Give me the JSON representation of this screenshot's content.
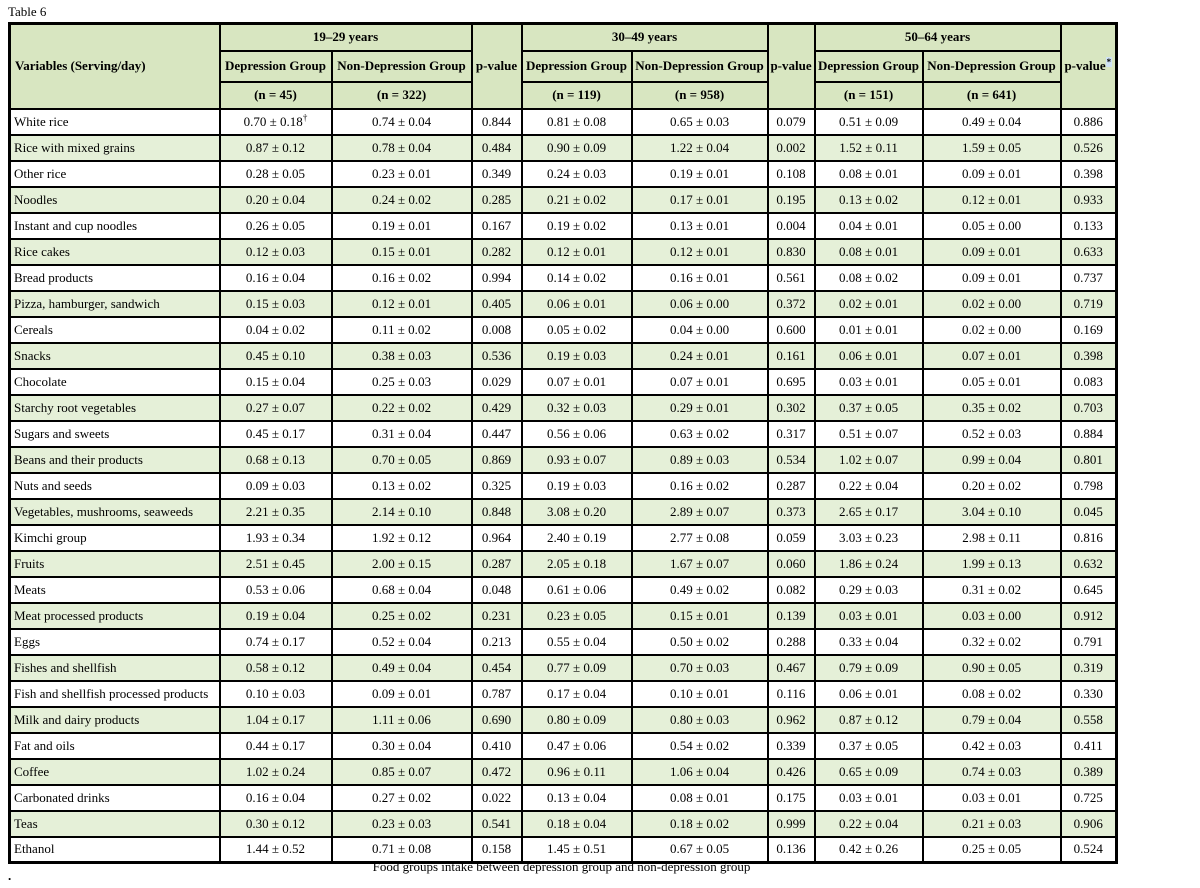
{
  "title": "Table 6",
  "caption": "Food groups intake between depression group and non-depression group",
  "trailing_period": ".",
  "colors": {
    "header_green": "#d8e6c1",
    "row_green": "#e5f0d8",
    "footnote_highlight": "#cfe2f4",
    "border": "#000000"
  },
  "columns": {
    "variables_header": "Variables (Serving/day)",
    "age_groups": [
      {
        "label": "19–29 years",
        "dep_label": "Depression Group",
        "nondep_label": "Non-Depression Group",
        "dep_n": "(n = 45)",
        "nondep_n": "(n = 322)",
        "p_label": "p-value"
      },
      {
        "label": "30–49 years",
        "dep_label": "Depression Group",
        "nondep_label": "Non-Depression Group",
        "dep_n": "(n = 119)",
        "nondep_n": "(n = 958)",
        "p_label": "p-value"
      },
      {
        "label": "50–64 years",
        "dep_label": "Depression Group",
        "nondep_label": "Non-Depression Group",
        "dep_n": "(n = 151)",
        "nondep_n": "(n = 641)",
        "p_label": "p-value",
        "p_footnote": "*"
      }
    ]
  },
  "rows": [
    {
      "name": "White rice",
      "values": [
        "0.70 ± 0.18†",
        "0.74 ± 0.04",
        "0.844",
        "0.81 ± 0.08",
        "0.65 ± 0.03",
        "0.079",
        "0.51 ± 0.09",
        "0.49 ± 0.04",
        "0.886"
      ]
    },
    {
      "name": "Rice with mixed grains",
      "values": [
        "0.87 ± 0.12",
        "0.78 ± 0.04",
        "0.484",
        "0.90 ± 0.09",
        "1.22 ± 0.04",
        "0.002",
        "1.52 ± 0.11",
        "1.59 ± 0.05",
        "0.526"
      ]
    },
    {
      "name": "Other rice",
      "values": [
        "0.28 ± 0.05",
        "0.23 ± 0.01",
        "0.349",
        "0.24 ± 0.03",
        "0.19 ± 0.01",
        "0.108",
        "0.08 ± 0.01",
        "0.09 ± 0.01",
        "0.398"
      ]
    },
    {
      "name": "Noodles",
      "values": [
        "0.20 ± 0.04",
        "0.24 ± 0.02",
        "0.285",
        "0.21 ± 0.02",
        "0.17 ± 0.01",
        "0.195",
        "0.13 ± 0.02",
        "0.12 ± 0.01",
        "0.933"
      ]
    },
    {
      "name": "Instant and cup noodles",
      "values": [
        "0.26 ± 0.05",
        "0.19 ± 0.01",
        "0.167",
        "0.19 ± 0.02",
        "0.13 ± 0.01",
        "0.004",
        "0.04 ± 0.01",
        "0.05 ± 0.00",
        "0.133"
      ]
    },
    {
      "name": "Rice cakes",
      "values": [
        "0.12 ± 0.03",
        "0.15 ± 0.01",
        "0.282",
        "0.12 ± 0.01",
        "0.12 ± 0.01",
        "0.830",
        "0.08 ± 0.01",
        "0.09 ± 0.01",
        "0.633"
      ]
    },
    {
      "name": "Bread products",
      "values": [
        "0.16 ± 0.04",
        "0.16 ± 0.02",
        "0.994",
        "0.14 ± 0.02",
        "0.16 ± 0.01",
        "0.561",
        "0.08 ± 0.02",
        "0.09 ± 0.01",
        "0.737"
      ]
    },
    {
      "name": "Pizza, hamburger, sandwich",
      "values": [
        "0.15 ± 0.03",
        "0.12 ± 0.01",
        "0.405",
        "0.06 ± 0.01",
        "0.06 ± 0.00",
        "0.372",
        "0.02 ± 0.01",
        "0.02 ± 0.00",
        "0.719"
      ]
    },
    {
      "name": "Cereals",
      "values": [
        "0.04 ± 0.02",
        "0.11 ± 0.02",
        "0.008",
        "0.05 ± 0.02",
        "0.04 ± 0.00",
        "0.600",
        "0.01 ± 0.01",
        "0.02 ± 0.00",
        "0.169"
      ]
    },
    {
      "name": "Snacks",
      "values": [
        "0.45 ± 0.10",
        "0.38 ± 0.03",
        "0.536",
        "0.19 ± 0.03",
        "0.24 ± 0.01",
        "0.161",
        "0.06 ± 0.01",
        "0.07 ± 0.01",
        "0.398"
      ]
    },
    {
      "name": "Chocolate",
      "values": [
        "0.15 ± 0.04",
        "0.25 ± 0.03",
        "0.029",
        "0.07 ± 0.01",
        "0.07 ± 0.01",
        "0.695",
        "0.03 ± 0.01",
        "0.05 ± 0.01",
        "0.083"
      ]
    },
    {
      "name": "Starchy root vegetables",
      "values": [
        "0.27 ± 0.07",
        "0.22 ± 0.02",
        "0.429",
        "0.32 ± 0.03",
        "0.29 ± 0.01",
        "0.302",
        "0.37 ± 0.05",
        "0.35 ± 0.02",
        "0.703"
      ]
    },
    {
      "name": "Sugars and sweets",
      "values": [
        "0.45 ± 0.17",
        "0.31 ± 0.04",
        "0.447",
        "0.56 ± 0.06",
        "0.63 ± 0.02",
        "0.317",
        "0.51 ± 0.07",
        "0.52 ± 0.03",
        "0.884"
      ]
    },
    {
      "name": "Beans and their products",
      "values": [
        "0.68 ± 0.13",
        "0.70 ± 0.05",
        "0.869",
        "0.93 ± 0.07",
        "0.89 ± 0.03",
        "0.534",
        "1.02 ± 0.07",
        "0.99 ± 0.04",
        "0.801"
      ]
    },
    {
      "name": "Nuts and seeds",
      "values": [
        "0.09 ± 0.03",
        "0.13 ± 0.02",
        "0.325",
        "0.19 ± 0.03",
        "0.16 ± 0.02",
        "0.287",
        "0.22 ± 0.04",
        "0.20 ± 0.02",
        "0.798"
      ]
    },
    {
      "name": "Vegetables, mushrooms, seaweeds",
      "values": [
        "2.21 ± 0.35",
        "2.14 ± 0.10",
        "0.848",
        "3.08 ± 0.20",
        "2.89 ± 0.07",
        "0.373",
        "2.65 ± 0.17",
        "3.04 ± 0.10",
        "0.045"
      ]
    },
    {
      "name": "Kimchi group",
      "values": [
        "1.93 ± 0.34",
        "1.92 ± 0.12",
        "0.964",
        "2.40 ± 0.19",
        "2.77 ± 0.08",
        "0.059",
        "3.03 ± 0.23",
        "2.98 ± 0.11",
        "0.816"
      ]
    },
    {
      "name": "Fruits",
      "values": [
        "2.51 ± 0.45",
        "2.00 ± 0.15",
        "0.287",
        "2.05 ± 0.18",
        "1.67 ± 0.07",
        "0.060",
        "1.86 ± 0.24",
        "1.99 ± 0.13",
        "0.632"
      ]
    },
    {
      "name": "Meats",
      "values": [
        "0.53 ± 0.06",
        "0.68 ± 0.04",
        "0.048",
        "0.61 ± 0.06",
        "0.49 ± 0.02",
        "0.082",
        "0.29 ± 0.03",
        "0.31 ± 0.02",
        "0.645"
      ]
    },
    {
      "name": "Meat processed products",
      "values": [
        "0.19 ± 0.04",
        "0.25 ± 0.02",
        "0.231",
        "0.23 ± 0.05",
        "0.15 ± 0.01",
        "0.139",
        "0.03 ± 0.01",
        "0.03 ± 0.00",
        "0.912"
      ]
    },
    {
      "name": "Eggs",
      "values": [
        "0.74 ± 0.17",
        "0.52 ± 0.04",
        "0.213",
        "0.55 ± 0.04",
        "0.50 ± 0.02",
        "0.288",
        "0.33 ± 0.04",
        "0.32 ± 0.02",
        "0.791"
      ]
    },
    {
      "name": "Fishes and shellfish",
      "values": [
        "0.58 ± 0.12",
        "0.49 ± 0.04",
        "0.454",
        "0.77 ± 0.09",
        "0.70 ± 0.03",
        "0.467",
        "0.79 ± 0.09",
        "0.90 ± 0.05",
        "0.319"
      ]
    },
    {
      "name": "Fish and shellfish processed products",
      "values": [
        "0.10 ± 0.03",
        "0.09 ± 0.01",
        "0.787",
        "0.17 ± 0.04",
        "0.10 ± 0.01",
        "0.116",
        "0.06 ± 0.01",
        "0.08 ± 0.02",
        "0.330"
      ]
    },
    {
      "name": "Milk and dairy products",
      "values": [
        "1.04 ± 0.17",
        "1.11 ± 0.06",
        "0.690",
        "0.80 ± 0.09",
        "0.80 ± 0.03",
        "0.962",
        "0.87 ± 0.12",
        "0.79 ± 0.04",
        "0.558"
      ]
    },
    {
      "name": "Fat and oils",
      "values": [
        "0.44 ± 0.17",
        "0.30 ± 0.04",
        "0.410",
        "0.47 ± 0.06",
        "0.54 ± 0.02",
        "0.339",
        "0.37 ± 0.05",
        "0.42 ± 0.03",
        "0.411"
      ]
    },
    {
      "name": "Coffee",
      "values": [
        "1.02 ± 0.24",
        "0.85 ± 0.07",
        "0.472",
        "0.96 ± 0.11",
        "1.06 ± 0.04",
        "0.426",
        "0.65 ± 0.09",
        "0.74 ± 0.03",
        "0.389"
      ]
    },
    {
      "name": "Carbonated drinks",
      "values": [
        "0.16 ± 0.04",
        "0.27 ± 0.02",
        "0.022",
        "0.13 ± 0.04",
        "0.08 ± 0.01",
        "0.175",
        "0.03 ± 0.01",
        "0.03 ± 0.01",
        "0.725"
      ]
    },
    {
      "name": "Teas",
      "values": [
        "0.30 ± 0.12",
        "0.23 ± 0.03",
        "0.541",
        "0.18 ± 0.04",
        "0.18 ± 0.02",
        "0.999",
        "0.22 ± 0.04",
        "0.21 ± 0.03",
        "0.906"
      ]
    },
    {
      "name": "Ethanol",
      "values": [
        "1.44 ± 0.52",
        "0.71 ± 0.08",
        "0.158",
        "1.45 ± 0.51",
        "0.67 ± 0.05",
        "0.136",
        "0.42 ± 0.26",
        "0.25 ± 0.05",
        "0.524"
      ]
    }
  ]
}
